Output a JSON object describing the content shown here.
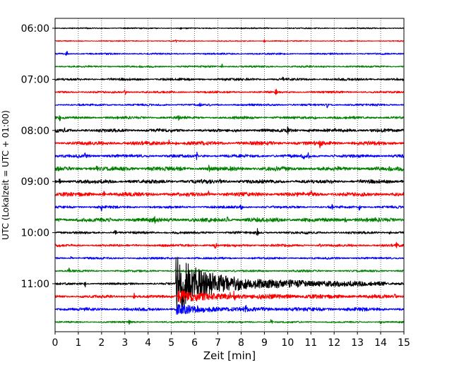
{
  "chart_data": {
    "type": "line",
    "title": "",
    "xlabel": "Zeit  [min]",
    "ylabel": "UTC (Lokalzeit = UTC + 01:00)",
    "xlim": [
      0,
      15
    ],
    "xticks": [
      "0",
      "1",
      "2",
      "3",
      "4",
      "5",
      "6",
      "7",
      "8",
      "9",
      "10",
      "11",
      "12",
      "13",
      "14",
      "15"
    ],
    "yticks": [
      "06:00",
      "07:00",
      "08:00",
      "09:00",
      "10:00",
      "11:00"
    ],
    "grid": "vertical dotted",
    "trace_interval_min": 15,
    "trace_colors": [
      "#000000",
      "#ff0000",
      "#0000ff",
      "#008000"
    ],
    "traces": [
      {
        "start": "06:00",
        "color": "#000000",
        "noise": 0.6,
        "spikes": [
          [
            5.4,
            1.5
          ],
          [
            9.1,
            1.5
          ]
        ]
      },
      {
        "start": "06:15",
        "color": "#ff0000",
        "noise": 0.5,
        "spikes": [
          [
            5.2,
            2.5
          ],
          [
            9.0,
            2.5
          ]
        ]
      },
      {
        "start": "06:30",
        "color": "#0000ff",
        "noise": 0.8,
        "spikes": [
          [
            0.5,
            4.5
          ]
        ]
      },
      {
        "start": "06:45",
        "color": "#008000",
        "noise": 0.9,
        "spikes": [
          [
            7.2,
            4.5
          ]
        ]
      },
      {
        "start": "07:00",
        "color": "#000000",
        "noise": 1.2,
        "spikes": [
          [
            9.8,
            4.5
          ]
        ]
      },
      {
        "start": "07:15",
        "color": "#ff0000",
        "noise": 1.0,
        "spikes": [
          [
            3.0,
            5
          ],
          [
            9.5,
            4
          ]
        ]
      },
      {
        "start": "07:30",
        "color": "#0000ff",
        "noise": 1.0,
        "spikes": [
          [
            6.2,
            3
          ],
          [
            11.7,
            3.5
          ]
        ]
      },
      {
        "start": "07:45",
        "color": "#008000",
        "noise": 1.3,
        "spikes": [
          [
            0.2,
            3.5
          ],
          [
            5.3,
            3.5
          ],
          [
            11.2,
            3
          ]
        ]
      },
      {
        "start": "08:00",
        "color": "#000000",
        "noise": 1.6,
        "spikes": [
          [
            0.4,
            3
          ],
          [
            10.0,
            3.5
          ],
          [
            10.9,
            3
          ]
        ]
      },
      {
        "start": "08:15",
        "color": "#ff0000",
        "noise": 1.8,
        "spikes": [
          [
            4.9,
            4
          ],
          [
            5.2,
            3
          ],
          [
            11.4,
            6
          ]
        ]
      },
      {
        "start": "08:30",
        "color": "#0000ff",
        "noise": 1.5,
        "spikes": [
          [
            1.3,
            4
          ],
          [
            6.1,
            5
          ],
          [
            10.7,
            4
          ],
          [
            10.9,
            4
          ]
        ]
      },
      {
        "start": "08:45",
        "color": "#008000",
        "noise": 2.0,
        "spikes": [
          [
            1.8,
            4
          ],
          [
            6.6,
            5
          ]
        ]
      },
      {
        "start": "09:00",
        "color": "#000000",
        "noise": 1.8,
        "spikes": [
          [
            0.2,
            3.5
          ],
          [
            7.1,
            4
          ],
          [
            11.9,
            4
          ],
          [
            14.9,
            3
          ]
        ]
      },
      {
        "start": "09:15",
        "color": "#ff0000",
        "noise": 1.9,
        "spikes": [
          [
            2.1,
            4
          ],
          [
            6.6,
            3.5
          ],
          [
            11.0,
            4
          ]
        ]
      },
      {
        "start": "09:30",
        "color": "#0000ff",
        "noise": 1.2,
        "spikes": [
          [
            2.0,
            4.5
          ],
          [
            8.0,
            3.5
          ],
          [
            11.9,
            3.5
          ],
          [
            13.1,
            6
          ]
        ]
      },
      {
        "start": "09:45",
        "color": "#008000",
        "noise": 2.0,
        "spikes": [
          [
            4.3,
            3.5
          ],
          [
            7.4,
            3.5
          ],
          [
            12.5,
            5
          ]
        ]
      },
      {
        "start": "10:00",
        "color": "#000000",
        "noise": 1.2,
        "spikes": [
          [
            2.6,
            4
          ],
          [
            8.7,
            6
          ],
          [
            14.4,
            3
          ]
        ]
      },
      {
        "start": "10:15",
        "color": "#ff0000",
        "noise": 1.2,
        "spikes": [
          [
            6.9,
            5
          ],
          [
            11.4,
            3
          ],
          [
            14.7,
            5
          ]
        ]
      },
      {
        "start": "10:30",
        "color": "#0000ff",
        "noise": 1.0,
        "spikes": [
          [
            0.7,
            3
          ]
        ]
      },
      {
        "start": "10:45",
        "color": "#008000",
        "noise": 1.0,
        "spikes": [
          [
            0.6,
            4
          ]
        ]
      },
      {
        "start": "11:00",
        "color": "#000000",
        "noise": 1.1,
        "spikes": [
          [
            1.3,
            4
          ]
        ],
        "event": {
          "onset": 5.2,
          "peak": 34,
          "decay": 2.6,
          "tail": 7
        }
      },
      {
        "start": "11:15",
        "color": "#ff0000",
        "noise": 1.3,
        "spikes": [
          [
            3.4,
            4
          ],
          [
            7.5,
            5
          ],
          [
            7.7,
            6
          ],
          [
            14.6,
            6
          ]
        ],
        "event": {
          "onset": 5.3,
          "peak": 6,
          "decay": 2,
          "tail": 3
        }
      },
      {
        "start": "11:30",
        "color": "#0000ff",
        "noise": 1.5,
        "spikes": [
          [
            1.3,
            4
          ],
          [
            8.2,
            4
          ]
        ],
        "event": {
          "onset": 5.2,
          "peak": 5,
          "decay": 1.5,
          "tail": 2
        }
      },
      {
        "start": "11:45",
        "color": "#008000",
        "noise": 0.8,
        "spikes": [
          [
            3.2,
            3
          ],
          [
            9.3,
            5
          ],
          [
            14.0,
            4
          ]
        ]
      }
    ]
  }
}
